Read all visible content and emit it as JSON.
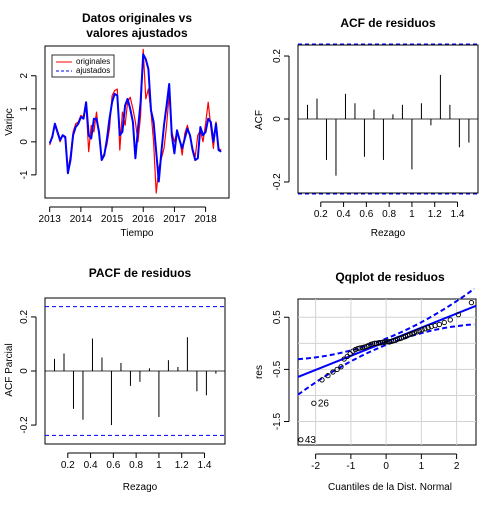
{
  "colors": {
    "original": "#ff0000",
    "fitted": "#0000ff",
    "bands": "#0000ff",
    "grid": "#d3d3d3"
  },
  "chart_data": [
    {
      "type": "line",
      "title": [
        "Datos originales vs",
        "valores ajustados"
      ],
      "xlabel": "Tiempo",
      "ylabel": "Varipc",
      "xlim": [
        2012.85,
        2018.75
      ],
      "ylim": [
        -1.7,
        2.9
      ],
      "xticks": [
        2013,
        2014,
        2015,
        2016,
        2017,
        2018
      ],
      "yticks": [
        -1,
        0,
        1,
        2
      ],
      "legend": {
        "position": "top-left",
        "entries": [
          "originales",
          "ajustados"
        ]
      },
      "series": [
        {
          "name": "originales",
          "x": [
            2013.0,
            2013.083,
            2013.167,
            2013.25,
            2013.333,
            2013.417,
            2013.5,
            2013.583,
            2013.667,
            2013.75,
            2013.833,
            2013.917,
            2014.0,
            2014.083,
            2014.167,
            2014.25,
            2014.333,
            2014.417,
            2014.5,
            2014.583,
            2014.667,
            2014.75,
            2014.833,
            2014.917,
            2015.0,
            2015.083,
            2015.167,
            2015.25,
            2015.333,
            2015.417,
            2015.5,
            2015.583,
            2015.667,
            2015.75,
            2015.833,
            2015.917,
            2016.0,
            2016.083,
            2016.167,
            2016.25,
            2016.333,
            2016.417,
            2016.5,
            2016.583,
            2016.667,
            2016.75,
            2016.833,
            2016.917,
            2017.0,
            2017.083,
            2017.167,
            2017.25,
            2017.333,
            2017.417,
            2017.5,
            2017.583,
            2017.667,
            2017.75,
            2017.833,
            2017.917,
            2018.0,
            2018.083,
            2018.167,
            2018.25,
            2018.333,
            2018.417,
            2018.5
          ],
          "y": [
            -0.1,
            0.2,
            0.5,
            0.25,
            0.0,
            0.2,
            0.1,
            -0.9,
            -0.4,
            0.3,
            0.55,
            0.6,
            0.8,
            0.75,
            1.1,
            -0.3,
            0.5,
            0.3,
            0.9,
            0.2,
            -0.5,
            -0.35,
            -0.1,
            0.4,
            1.4,
            1.55,
            1.6,
            -0.25,
            0.9,
            0.5,
            1.2,
            1.35,
            1.0,
            0.6,
            0.0,
            0.8,
            2.8,
            1.3,
            1.6,
            0.9,
            0.0,
            -1.55,
            -0.8,
            -0.5,
            -0.2,
            0.5,
            1.45,
            0.3,
            0.0,
            0.3,
            0.1,
            -0.4,
            0.25,
            0.5,
            0.15,
            -0.2,
            -0.45,
            0.2,
            0.35,
            0.0,
            0.55,
            1.2,
            0.45,
            -0.2,
            0.6,
            -0.2,
            -0.25
          ]
        },
        {
          "name": "ajustados",
          "x": [
            2013.0,
            2013.083,
            2013.167,
            2013.25,
            2013.333,
            2013.417,
            2013.5,
            2013.583,
            2013.667,
            2013.75,
            2013.833,
            2013.917,
            2014.0,
            2014.083,
            2014.167,
            2014.25,
            2014.333,
            2014.417,
            2014.5,
            2014.583,
            2014.667,
            2014.75,
            2014.833,
            2014.917,
            2015.0,
            2015.083,
            2015.167,
            2015.25,
            2015.333,
            2015.417,
            2015.5,
            2015.583,
            2015.667,
            2015.75,
            2015.833,
            2015.917,
            2016.0,
            2016.083,
            2016.167,
            2016.25,
            2016.333,
            2016.417,
            2016.5,
            2016.583,
            2016.667,
            2016.75,
            2016.833,
            2016.917,
            2017.0,
            2017.083,
            2017.167,
            2017.25,
            2017.333,
            2017.417,
            2017.5,
            2017.583,
            2017.667,
            2017.75,
            2017.833,
            2017.917,
            2018.0,
            2018.083,
            2018.167,
            2018.25,
            2018.333,
            2018.417,
            2018.5
          ],
          "y": [
            -0.05,
            0.15,
            0.55,
            0.3,
            0.05,
            0.2,
            0.15,
            -0.95,
            -0.55,
            0.2,
            0.45,
            0.55,
            0.75,
            0.7,
            1.2,
            0.2,
            0.1,
            0.7,
            0.7,
            0.3,
            -0.55,
            -0.4,
            0.05,
            0.7,
            1.2,
            1.45,
            1.4,
            0.2,
            0.3,
            1.1,
            1.3,
            1.0,
            0.6,
            -0.5,
            0.4,
            1.2,
            2.65,
            2.5,
            2.2,
            0.95,
            0.6,
            -0.3,
            -1.2,
            -0.3,
            0.5,
            1.1,
            1.75,
            0.2,
            -0.35,
            0.35,
            0.05,
            -0.2,
            0.1,
            0.4,
            0.2,
            -0.25,
            -0.55,
            -0.5,
            0.45,
            0.2,
            0.3,
            0.7,
            0.6,
            0.0,
            0.55,
            -0.25,
            -0.3
          ]
        }
      ]
    },
    {
      "type": "bar",
      "title": "ACF de residuos",
      "xlabel": "Rezago",
      "ylabel": "ACF",
      "xlim": [
        0.0,
        1.58
      ],
      "ylim": [
        -0.235,
        0.235
      ],
      "xticks": [
        0.2,
        0.4,
        0.6,
        0.8,
        1.0,
        1.2,
        1.4
      ],
      "yticks": [
        -0.2,
        0.0,
        0.2
      ],
      "bands": [
        0.238,
        -0.238
      ],
      "x": [
        0.0833,
        0.1667,
        0.25,
        0.3333,
        0.4167,
        0.5,
        0.5833,
        0.6667,
        0.75,
        0.8333,
        0.9167,
        1.0,
        1.0833,
        1.1667,
        1.25,
        1.3333,
        1.4167,
        1.5
      ],
      "values": [
        0.045,
        0.065,
        -0.13,
        -0.18,
        0.08,
        0.05,
        -0.12,
        0.03,
        -0.13,
        0.015,
        0.045,
        -0.16,
        0.05,
        -0.02,
        0.14,
        0.045,
        -0.09,
        -0.075
      ]
    },
    {
      "type": "bar",
      "title": "PACF de residuos",
      "xlabel": "Rezago",
      "ylabel": "ACF Parcial",
      "xlim": [
        0.0,
        1.58
      ],
      "ylim": [
        -0.27,
        0.27
      ],
      "xticks": [
        0.2,
        0.4,
        0.6,
        0.8,
        1.0,
        1.2,
        1.4
      ],
      "yticks": [
        -0.2,
        0.0,
        0.2
      ],
      "bands": [
        0.238,
        -0.238
      ],
      "x": [
        0.0833,
        0.1667,
        0.25,
        0.3333,
        0.4167,
        0.5,
        0.5833,
        0.6667,
        0.75,
        0.8333,
        0.9167,
        1.0,
        1.0833,
        1.1667,
        1.25,
        1.3333,
        1.4167,
        1.5
      ],
      "values": [
        0.045,
        0.065,
        -0.14,
        -0.18,
        0.12,
        0.05,
        -0.2,
        0.03,
        -0.055,
        -0.04,
        0.01,
        -0.17,
        0.04,
        0.015,
        0.125,
        -0.075,
        -0.09,
        -0.01
      ]
    },
    {
      "type": "scatter",
      "title": "Qqplot de residuos",
      "xlabel": "Cuantiles de la Dist. Normal",
      "ylabel": "res",
      "xlim": [
        -2.5,
        2.55
      ],
      "ylim": [
        -1.95,
        0.85
      ],
      "xticks": [
        -2,
        -1,
        0,
        1,
        2
      ],
      "yticks": [
        -1.5,
        -0.5,
        0.5
      ],
      "grid": true,
      "labeled_points": [
        {
          "label": "43",
          "x": -2.42,
          "y": -1.85
        },
        {
          "label": "26",
          "x": -2.05,
          "y": -1.15
        }
      ],
      "x": [
        -2.42,
        -2.05,
        -1.82,
        -1.65,
        -1.51,
        -1.39,
        -1.28,
        -1.19,
        -1.1,
        -1.02,
        -0.94,
        -0.87,
        -0.8,
        -0.74,
        -0.67,
        -0.61,
        -0.55,
        -0.49,
        -0.43,
        -0.38,
        -0.32,
        -0.27,
        -0.21,
        -0.16,
        -0.1,
        -0.05,
        0.0,
        0.05,
        0.1,
        0.16,
        0.21,
        0.27,
        0.32,
        0.38,
        0.43,
        0.49,
        0.55,
        0.61,
        0.67,
        0.74,
        0.8,
        0.87,
        0.94,
        1.02,
        1.1,
        1.19,
        1.28,
        1.39,
        1.51,
        1.65,
        1.82,
        2.05,
        2.42
      ],
      "y": [
        -1.85,
        -1.15,
        -0.7,
        -0.62,
        -0.55,
        -0.5,
        -0.45,
        -0.3,
        -0.25,
        -0.2,
        -0.15,
        -0.12,
        -0.1,
        -0.09,
        -0.08,
        -0.07,
        -0.06,
        -0.04,
        -0.02,
        -0.01,
        0.0,
        0.0,
        0.01,
        0.01,
        0.02,
        0.02,
        0.03,
        0.03,
        0.03,
        0.04,
        0.05,
        0.06,
        0.08,
        0.09,
        0.1,
        0.12,
        0.13,
        0.15,
        0.17,
        0.18,
        0.2,
        0.22,
        0.24,
        0.26,
        0.28,
        0.3,
        0.32,
        0.34,
        0.36,
        0.4,
        0.45,
        0.55,
        0.78
      ]
    }
  ]
}
